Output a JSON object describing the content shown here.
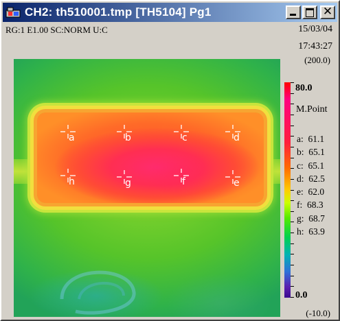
{
  "window": {
    "title": "CH2:  th510001.tmp  [TH5104]  Pg1",
    "close_glyph": "✕",
    "icons": {
      "app": "thermal-camera-icon",
      "minimize": "minimize-icon",
      "maximize": "maximize-icon",
      "close": "close-icon"
    }
  },
  "header": {
    "info": "RG:1 E1.00 SC:NORM U:C",
    "date": "15/03/04",
    "time": "17:43:27",
    "range_top": "(200.0)",
    "range_bottom": "(-10.0)"
  },
  "scale": {
    "max_label": "80.0",
    "min_label": "0.0",
    "max": 80.0,
    "min": 0.0,
    "tick_count": 20
  },
  "measurement": {
    "title": "M.Point",
    "points": [
      {
        "id": "a",
        "value": "61.1"
      },
      {
        "id": "b",
        "value": "65.1"
      },
      {
        "id": "c",
        "value": "65.1"
      },
      {
        "id": "d",
        "value": "62.5"
      },
      {
        "id": "e",
        "value": "62.0"
      },
      {
        "id": "f",
        "value": "68.3"
      },
      {
        "id": "g",
        "value": "68.7"
      },
      {
        "id": "h",
        "value": "63.9"
      }
    ]
  },
  "colors": {
    "title_gradient_start": "#0a246a",
    "title_gradient_end": "#a6caf0",
    "window_bg": "#d4d0c8"
  }
}
